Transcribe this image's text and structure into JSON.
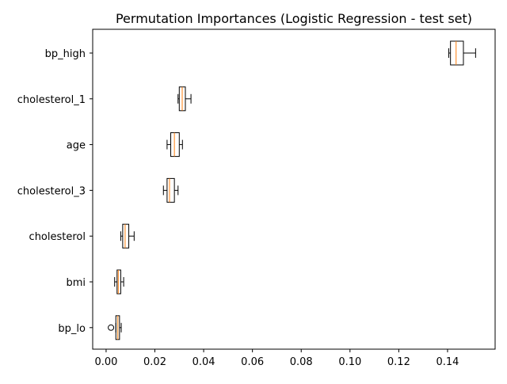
{
  "chart_data": {
    "type": "boxplot",
    "title": "Permutation Importances (Logistic Regression - test set)",
    "xlabel": "",
    "ylabel": "",
    "orientation": "horizontal",
    "xlim": [
      -0.0055,
      0.1595
    ],
    "xticks": [
      0.0,
      0.02,
      0.04,
      0.06,
      0.08,
      0.1,
      0.12,
      0.14
    ],
    "xtick_labels": [
      "0.00",
      "0.02",
      "0.04",
      "0.06",
      "0.08",
      "0.10",
      "0.12",
      "0.14"
    ],
    "grid": false,
    "colors": {
      "box": "#000000",
      "median": "#ff7f0e",
      "axis": "#000000"
    },
    "categories": [
      "bp_high",
      "cholesterol_1",
      "age",
      "cholesterol_3",
      "cholesterol",
      "bmi",
      "bp_lo"
    ],
    "boxes": [
      {
        "label": "bp_high",
        "whisker_low": 0.1405,
        "q1": 0.1412,
        "median": 0.1435,
        "q3": 0.1465,
        "whisker_high": 0.1515,
        "outliers": []
      },
      {
        "label": "cholesterol_1",
        "whisker_low": 0.0295,
        "q1": 0.03,
        "median": 0.0312,
        "q3": 0.0325,
        "whisker_high": 0.0348,
        "outliers": []
      },
      {
        "label": "age",
        "whisker_low": 0.025,
        "q1": 0.0265,
        "median": 0.028,
        "q3": 0.03,
        "whisker_high": 0.0313,
        "outliers": []
      },
      {
        "label": "cholesterol_3",
        "whisker_low": 0.0235,
        "q1": 0.025,
        "median": 0.026,
        "q3": 0.028,
        "whisker_high": 0.0295,
        "outliers": []
      },
      {
        "label": "cholesterol",
        "whisker_low": 0.006,
        "q1": 0.0068,
        "median": 0.0078,
        "q3": 0.0093,
        "whisker_high": 0.0115,
        "outliers": []
      },
      {
        "label": "bmi",
        "whisker_low": 0.0035,
        "q1": 0.0045,
        "median": 0.005,
        "q3": 0.006,
        "whisker_high": 0.0072,
        "outliers": []
      },
      {
        "label": "bp_lo",
        "whisker_low": 0.004,
        "q1": 0.004,
        "median": 0.0048,
        "q3": 0.0055,
        "whisker_high": 0.0062,
        "outliers": [
          0.002
        ]
      }
    ]
  }
}
